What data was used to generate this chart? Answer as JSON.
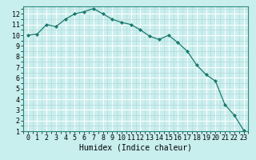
{
  "x": [
    0,
    1,
    2,
    3,
    4,
    5,
    6,
    7,
    8,
    9,
    10,
    11,
    12,
    13,
    14,
    15,
    16,
    17,
    18,
    19,
    20,
    21,
    22,
    23
  ],
  "y": [
    10.0,
    10.1,
    11.0,
    10.8,
    11.5,
    12.0,
    12.2,
    12.5,
    12.0,
    11.5,
    11.2,
    11.0,
    10.5,
    9.9,
    9.6,
    10.0,
    9.3,
    8.5,
    7.2,
    6.3,
    5.7,
    3.5,
    2.5,
    1.1
  ],
  "xlabel": "Humidex (Indice chaleur)",
  "ylim": [
    1,
    12.7
  ],
  "xlim": [
    -0.5,
    23.5
  ],
  "yticks": [
    1,
    2,
    3,
    4,
    5,
    6,
    7,
    8,
    9,
    10,
    11,
    12
  ],
  "xticks": [
    0,
    1,
    2,
    3,
    4,
    5,
    6,
    7,
    8,
    9,
    10,
    11,
    12,
    13,
    14,
    15,
    16,
    17,
    18,
    19,
    20,
    21,
    22,
    23
  ],
  "line_color": "#1a7a6e",
  "marker_color": "#1a7a6e",
  "bg_color": "#c8eeee",
  "grid_major_color": "#ffffff",
  "grid_minor_color": "#b8d8d8",
  "xlabel_fontsize": 7,
  "tick_fontsize": 6
}
